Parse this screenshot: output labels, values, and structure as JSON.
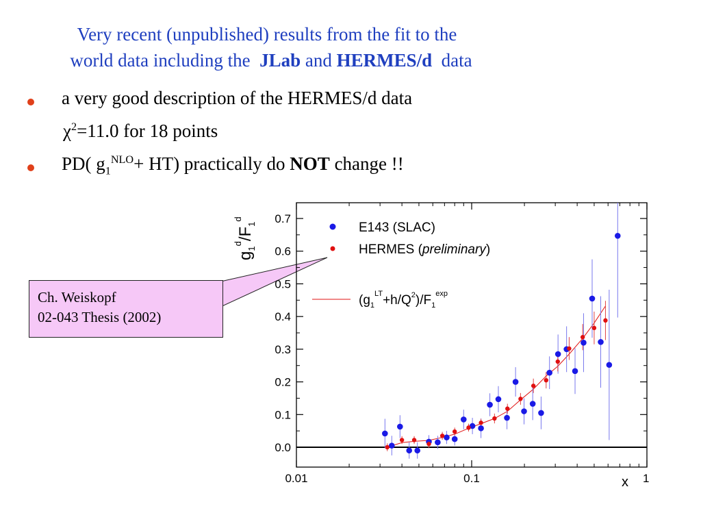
{
  "title": {
    "line1": "Very recent (unpublished) results from the fit to the",
    "line2_pre": "world data including the",
    "line2_jlab": "JLab",
    "line2_and": "and",
    "line2_hermes": "HERMES/d",
    "line2_post": "data"
  },
  "bullets": [
    {
      "text": "a very good description of the HERMES/d data"
    },
    {
      "chi_symbol": "χ",
      "chi_sup": "2",
      "chi_rest": "=11.0 for 18 points"
    },
    {
      "pre": "PD( g",
      "sub": "1",
      "sup": "NLO",
      "mid": "+ HT) practically do ",
      "bold": "NOT",
      "post": " change !!"
    }
  ],
  "callout": {
    "line1": "Ch. Weiskopf",
    "line2": "02-043 Thesis (2002)"
  },
  "colors": {
    "title": "#1f3fbf",
    "bullet": "#e0401a",
    "e143": "#1a1ae6",
    "hermes": "#e01010",
    "fit_line": "#e01010",
    "callout_bg": "#f6c8f7"
  },
  "chart_data": {
    "type": "scatter",
    "x_scale": "log",
    "xlim": [
      0.01,
      1
    ],
    "ylim": [
      -0.07,
      0.77
    ],
    "xticks": [
      "0.01",
      "0.1",
      "1"
    ],
    "yticks": [
      "0.0",
      "0.1",
      "0.2",
      "0.3",
      "0.4",
      "0.5",
      "0.6",
      "0.7"
    ],
    "xlabel": "x",
    "ylabel": {
      "g": "g",
      "g_sub": "1",
      "g_sup": "d",
      "slash": "/F",
      "f_sub": "1",
      "f_sup": "d"
    },
    "legend": {
      "e143": "E143 (SLAC)",
      "hermes_pre": "HERMES (",
      "hermes_italic": "preliminary",
      "hermes_post": ")",
      "fit": {
        "pre": "(g",
        "sub1": "1",
        "sup1": "LT",
        "mid": "+h/Q",
        "sup2": "2",
        "post": ")/F",
        "sub2": "1",
        "sup3": "exp"
      }
    },
    "series": [
      {
        "name": "E143 (SLAC)",
        "points": [
          {
            "x": 0.032,
            "y": 0.042,
            "err": 0.045
          },
          {
            "x": 0.035,
            "y": 0.005,
            "err": 0.03
          },
          {
            "x": 0.039,
            "y": 0.063,
            "err": 0.035
          },
          {
            "x": 0.044,
            "y": -0.01,
            "err": 0.025
          },
          {
            "x": 0.049,
            "y": -0.01,
            "err": 0.025
          },
          {
            "x": 0.057,
            "y": 0.017,
            "err": 0.02
          },
          {
            "x": 0.064,
            "y": 0.015,
            "err": 0.02
          },
          {
            "x": 0.072,
            "y": 0.03,
            "err": 0.02
          },
          {
            "x": 0.08,
            "y": 0.025,
            "err": 0.02
          },
          {
            "x": 0.09,
            "y": 0.085,
            "err": 0.03
          },
          {
            "x": 0.101,
            "y": 0.065,
            "err": 0.025
          },
          {
            "x": 0.113,
            "y": 0.058,
            "err": 0.03
          },
          {
            "x": 0.127,
            "y": 0.13,
            "err": 0.035
          },
          {
            "x": 0.142,
            "y": 0.147,
            "err": 0.04
          },
          {
            "x": 0.159,
            "y": 0.09,
            "err": 0.035
          },
          {
            "x": 0.178,
            "y": 0.2,
            "err": 0.045
          },
          {
            "x": 0.199,
            "y": 0.11,
            "err": 0.04
          },
          {
            "x": 0.223,
            "y": 0.133,
            "err": 0.05
          },
          {
            "x": 0.249,
            "y": 0.105,
            "err": 0.05
          },
          {
            "x": 0.278,
            "y": 0.228,
            "err": 0.05
          },
          {
            "x": 0.311,
            "y": 0.285,
            "err": 0.06
          },
          {
            "x": 0.348,
            "y": 0.3,
            "err": 0.07
          },
          {
            "x": 0.389,
            "y": 0.233,
            "err": 0.07
          },
          {
            "x": 0.435,
            "y": 0.32,
            "err": 0.09
          },
          {
            "x": 0.487,
            "y": 0.455,
            "err": 0.12
          },
          {
            "x": 0.545,
            "y": 0.322,
            "err": 0.14
          },
          {
            "x": 0.609,
            "y": 0.252,
            "err": 0.23
          },
          {
            "x": 0.681,
            "y": 0.647,
            "err": 0.25
          }
        ]
      },
      {
        "name": "HERMES (preliminary)",
        "points": [
          {
            "x": 0.033,
            "y": 0.0,
            "err": 0.012
          },
          {
            "x": 0.04,
            "y": 0.022,
            "err": 0.012
          },
          {
            "x": 0.047,
            "y": 0.022,
            "err": 0.012
          },
          {
            "x": 0.057,
            "y": 0.01,
            "err": 0.012
          },
          {
            "x": 0.068,
            "y": 0.035,
            "err": 0.012
          },
          {
            "x": 0.08,
            "y": 0.048,
            "err": 0.012
          },
          {
            "x": 0.096,
            "y": 0.06,
            "err": 0.012
          },
          {
            "x": 0.113,
            "y": 0.075,
            "err": 0.012
          },
          {
            "x": 0.135,
            "y": 0.088,
            "err": 0.015
          },
          {
            "x": 0.16,
            "y": 0.118,
            "err": 0.015
          },
          {
            "x": 0.19,
            "y": 0.148,
            "err": 0.018
          },
          {
            "x": 0.225,
            "y": 0.188,
            "err": 0.022
          },
          {
            "x": 0.266,
            "y": 0.205,
            "err": 0.025
          },
          {
            "x": 0.31,
            "y": 0.262,
            "err": 0.03
          },
          {
            "x": 0.36,
            "y": 0.302,
            "err": 0.035
          },
          {
            "x": 0.43,
            "y": 0.337,
            "err": 0.04
          },
          {
            "x": 0.5,
            "y": 0.365,
            "err": 0.05
          },
          {
            "x": 0.58,
            "y": 0.388,
            "err": 0.06
          }
        ]
      },
      {
        "name": "(g1LT+h/Q2)/F1exp",
        "type": "line",
        "points": [
          {
            "x": 0.033,
            "y": 0.0
          },
          {
            "x": 0.04,
            "y": 0.014
          },
          {
            "x": 0.047,
            "y": 0.018
          },
          {
            "x": 0.057,
            "y": 0.021
          },
          {
            "x": 0.068,
            "y": 0.03
          },
          {
            "x": 0.08,
            "y": 0.04
          },
          {
            "x": 0.096,
            "y": 0.058
          },
          {
            "x": 0.113,
            "y": 0.072
          },
          {
            "x": 0.135,
            "y": 0.088
          },
          {
            "x": 0.16,
            "y": 0.11
          },
          {
            "x": 0.19,
            "y": 0.145
          },
          {
            "x": 0.225,
            "y": 0.178
          },
          {
            "x": 0.266,
            "y": 0.218
          },
          {
            "x": 0.31,
            "y": 0.248
          },
          {
            "x": 0.36,
            "y": 0.285
          },
          {
            "x": 0.43,
            "y": 0.333
          },
          {
            "x": 0.5,
            "y": 0.38
          },
          {
            "x": 0.58,
            "y": 0.432
          }
        ]
      }
    ]
  }
}
